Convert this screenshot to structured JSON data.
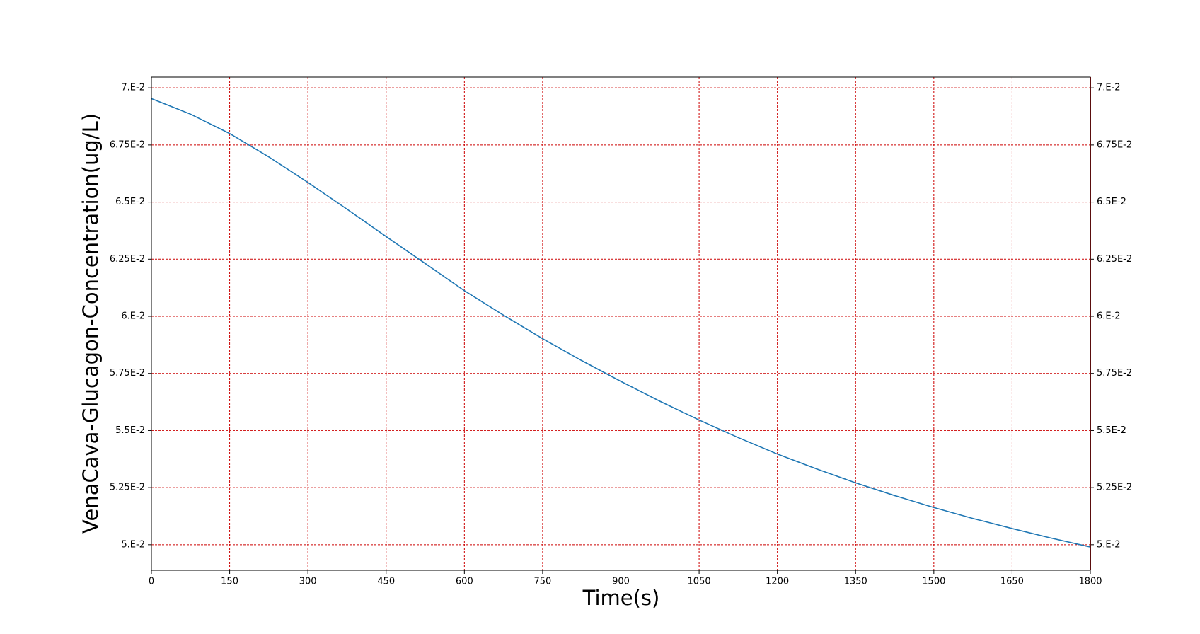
{
  "chart_data": {
    "type": "line",
    "xlabel": "Time(s)",
    "ylabel": "VenaCava-Glucagon-Concentration(ug/L)",
    "x": [
      0,
      75,
      150,
      225,
      300,
      375,
      450,
      525,
      600,
      675,
      750,
      825,
      900,
      975,
      1050,
      1125,
      1200,
      1275,
      1350,
      1425,
      1500,
      1575,
      1650,
      1725,
      1800
    ],
    "series": [
      {
        "color": "#1f77b4",
        "values": [
          0.06953,
          0.06885,
          0.068,
          0.06698,
          0.06586,
          0.06469,
          0.06349,
          0.06231,
          0.06112,
          0.06005,
          0.05902,
          0.05806,
          0.05715,
          0.05628,
          0.05546,
          0.05469,
          0.05397,
          0.05332,
          0.05271,
          0.05215,
          0.05163,
          0.05115,
          0.05071,
          0.05029,
          0.0499
        ]
      }
    ],
    "xlim": [
      0,
      1800
    ],
    "xticks": [
      0,
      150,
      300,
      450,
      600,
      750,
      900,
      1050,
      1200,
      1350,
      1500,
      1650,
      1800
    ],
    "ylim": [
      0.04888,
      0.07047
    ],
    "yticks": [
      {
        "value": 0.05,
        "label": "5.E-2"
      },
      {
        "value": 0.0525,
        "label": "5.25E-2"
      },
      {
        "value": 0.055,
        "label": "5.5E-2"
      },
      {
        "value": 0.0575,
        "label": "5.75E-2"
      },
      {
        "value": 0.06,
        "label": "6.E-2"
      },
      {
        "value": 0.0625,
        "label": "6.25E-2"
      },
      {
        "value": 0.065,
        "label": "6.5E-2"
      },
      {
        "value": 0.0675,
        "label": "6.75E-2"
      },
      {
        "value": 0.07,
        "label": "7.E-2"
      }
    ],
    "y2lim": [
      0.04888,
      0.07047
    ],
    "y2ticks": [
      {
        "value": 0.05,
        "label": "5.E-2"
      },
      {
        "value": 0.0525,
        "label": "5.25E-2"
      },
      {
        "value": 0.055,
        "label": "5.5E-2"
      },
      {
        "value": 0.0575,
        "label": "5.75E-2"
      },
      {
        "value": 0.06,
        "label": "6.E-2"
      },
      {
        "value": 0.0625,
        "label": "6.25E-2"
      },
      {
        "value": 0.065,
        "label": "6.5E-2"
      },
      {
        "value": 0.0675,
        "label": "6.75E-2"
      },
      {
        "value": 0.07,
        "label": "7.E-2"
      }
    ],
    "grid": true,
    "grid_color": "#cc0000"
  }
}
